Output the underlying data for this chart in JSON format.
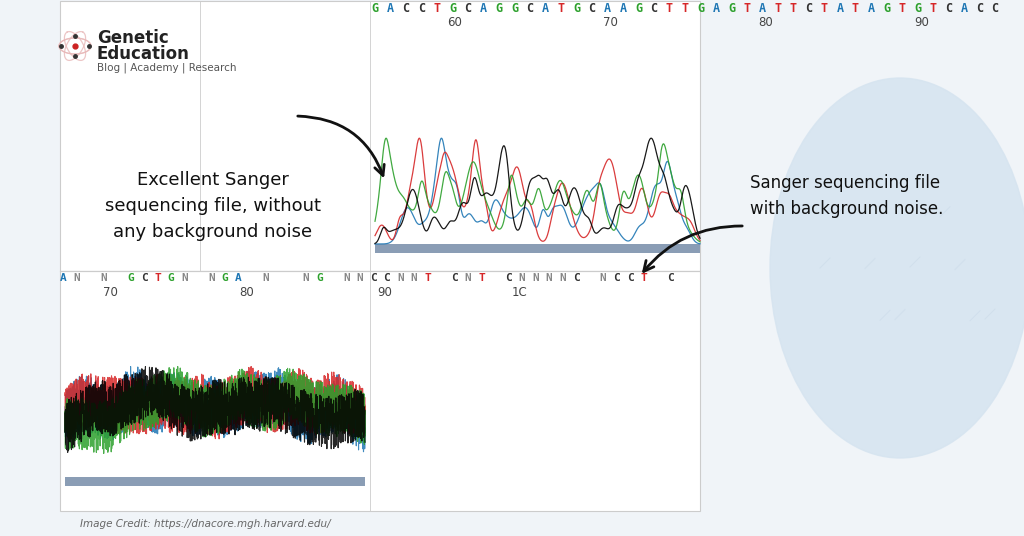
{
  "bg_color": "#f0f4f8",
  "light_blue_bg": "#d6e4f0",
  "white": "#ffffff",
  "border_color": "#cccccc",
  "bar_color": "#8a9db5",
  "title_text": "Genetic\nEducation",
  "subtitle_text": "Blog | Academy | Research",
  "label1": "Excellent Sanger\nsequencing file, without\nany background noise",
  "label2": "Sanger sequencing file\nwith background noise.",
  "credit_text": "Image Credit: https://dnacore.mgh.harvard.edu/",
  "seq1": "GACCTGCAGGCATGCAAGCTTGAGTATTCTATAGTGTCACC",
  "seq2": "AN N GCTGN NGA N  NG NNCCNNT CNT CNNNNC NCCT C",
  "tick1_labels": [
    "60",
    "70",
    "80",
    "90"
  ],
  "tick2_labels": [
    "70",
    "80",
    "90",
    "1C"
  ],
  "color_G": "#2ca02c",
  "color_A": "#1f77b4",
  "color_T": "#d62728",
  "color_C": "#333333",
  "color_N": "#888888",
  "color_black": "#000000",
  "arrow_color": "#111111"
}
